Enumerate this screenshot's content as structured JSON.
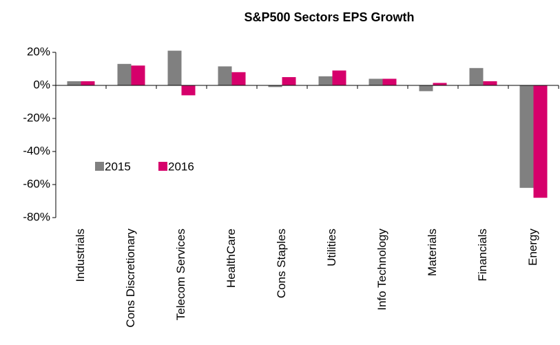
{
  "chart_data": {
    "type": "bar",
    "title": "S&P500  Sectors EPS Growth",
    "categories": [
      "Industrials",
      "Cons Discretionary",
      "Telecom Services",
      "HealthCare",
      "Cons Staples",
      "Utilities",
      "Info Technology",
      "Materials",
      "Financials",
      "Energy"
    ],
    "series": [
      {
        "name": "2015",
        "color": "#808080",
        "values": [
          2.5,
          13,
          21,
          11.5,
          -1,
          5.5,
          4,
          -3.5,
          10.5,
          -62
        ]
      },
      {
        "name": "2016",
        "color": "#d6006b",
        "values": [
          2.5,
          12,
          -6,
          8,
          5,
          9,
          4,
          1.5,
          2.5,
          -68
        ]
      }
    ],
    "ylim": [
      -80,
      20
    ],
    "yticks": [
      {
        "value": -80,
        "label": "-80%"
      },
      {
        "value": -60,
        "label": "-60%"
      },
      {
        "value": -40,
        "label": "-40%"
      },
      {
        "value": -20,
        "label": "-20%"
      },
      {
        "value": 0,
        "label": "0%"
      },
      {
        "value": 20,
        "label": "20%"
      }
    ],
    "grid": false
  }
}
